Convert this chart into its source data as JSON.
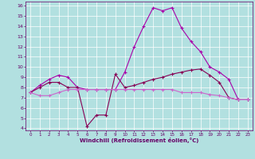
{
  "xlabel": "Windchill (Refroidissement éolien,°C)",
  "background_color": "#b2e0e0",
  "grid_color": "#ffffff",
  "line_color_1": "#aa00aa",
  "line_color_2": "#880055",
  "line_color_3": "#cc66cc",
  "xlim": [
    -0.5,
    23.5
  ],
  "ylim": [
    3.8,
    16.4
  ],
  "xticks": [
    0,
    1,
    2,
    3,
    4,
    5,
    6,
    7,
    8,
    9,
    10,
    11,
    12,
    13,
    14,
    15,
    16,
    17,
    18,
    19,
    20,
    21,
    22,
    23
  ],
  "yticks": [
    4,
    5,
    6,
    7,
    8,
    9,
    10,
    11,
    12,
    13,
    14,
    15,
    16
  ],
  "series2_x": [
    0,
    1,
    2,
    3,
    4,
    5,
    6,
    7,
    8,
    9,
    10,
    11,
    12,
    13,
    14,
    15,
    16,
    17,
    18,
    19,
    20,
    21,
    22,
    23
  ],
  "series2_y": [
    7.5,
    8.2,
    8.8,
    9.2,
    9.0,
    8.0,
    7.8,
    7.8,
    7.8,
    7.8,
    9.5,
    12.0,
    14.0,
    15.8,
    15.5,
    15.8,
    13.8,
    12.5,
    11.5,
    10.0,
    9.5,
    8.8,
    6.8,
    6.8
  ],
  "series1_x": [
    0,
    1,
    2,
    3,
    4,
    5,
    6,
    7,
    8,
    9,
    10,
    11,
    12,
    13,
    14,
    15,
    16,
    17,
    18,
    19,
    20,
    21,
    22,
    23
  ],
  "series1_y": [
    7.5,
    8.0,
    8.5,
    8.5,
    8.0,
    8.0,
    4.2,
    5.3,
    5.3,
    9.3,
    8.0,
    8.2,
    8.5,
    8.8,
    9.0,
    9.3,
    9.5,
    9.7,
    9.8,
    9.2,
    8.5,
    7.0,
    6.8,
    6.8
  ],
  "series3_x": [
    0,
    1,
    2,
    3,
    4,
    5,
    6,
    7,
    8,
    9,
    10,
    11,
    12,
    13,
    14,
    15,
    16,
    17,
    18,
    19,
    20,
    21,
    22,
    23
  ],
  "series3_y": [
    7.5,
    7.2,
    7.2,
    7.5,
    7.8,
    7.8,
    7.8,
    7.8,
    7.8,
    7.8,
    7.8,
    7.8,
    7.8,
    7.8,
    7.8,
    7.8,
    7.5,
    7.5,
    7.5,
    7.3,
    7.2,
    7.0,
    6.8,
    6.8
  ]
}
